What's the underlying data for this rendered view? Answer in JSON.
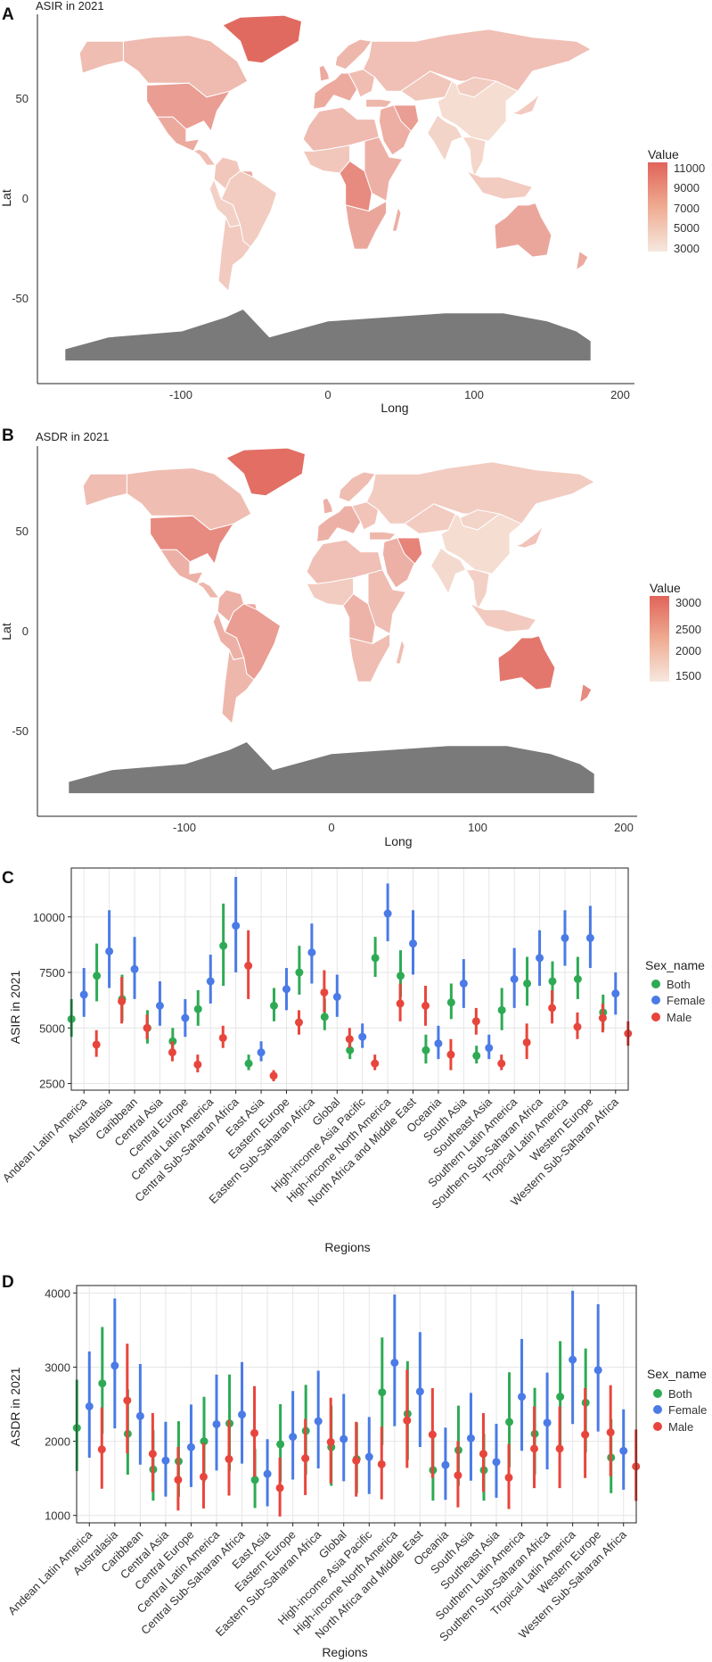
{
  "colors": {
    "both": "#2eaa55",
    "female": "#4a7be6",
    "male": "#e8453c",
    "antarctica": "#7a7a7a",
    "scale_low": "#f6e3d8",
    "scale_high": "#e0645a"
  },
  "chart_data": [
    {
      "panel": "A",
      "type": "choropleth",
      "title": "ASIR in 2021",
      "xlabel": "Long",
      "ylabel": "Lat",
      "xticks": [
        "-100",
        "0",
        "100",
        "200"
      ],
      "yticks": [
        "50",
        "0",
        "-50"
      ],
      "xlim": [
        -185,
        210
      ],
      "ylim": [
        -92,
        90
      ],
      "legend_title": "Value",
      "legend_values": [
        "11000",
        "9000",
        "7000",
        "5000",
        "3000"
      ],
      "range": [
        3000,
        11500
      ]
    },
    {
      "panel": "B",
      "type": "choropleth",
      "title": "ASDR in 2021",
      "xlabel": "Long",
      "ylabel": "Lat",
      "xticks": [
        "-100",
        "0",
        "100",
        "200"
      ],
      "yticks": [
        "50",
        "0",
        "-50"
      ],
      "xlim": [
        -185,
        210
      ],
      "ylim": [
        -92,
        90
      ],
      "legend_title": "Value",
      "legend_values": [
        "3000",
        "2500",
        "2000",
        "1500"
      ],
      "range": [
        1400,
        3100
      ]
    },
    {
      "panel": "C",
      "type": "pointrange",
      "xlabel": "Regions",
      "ylabel": "ASIR in 2021",
      "ylim": [
        2200,
        12200
      ],
      "yticks": [
        "2500",
        "5000",
        "7500",
        "10000"
      ],
      "legend_title": "Sex_name",
      "legend_labels": [
        "Both",
        "Female",
        "Male"
      ],
      "categories": [
        "Andean Latin America",
        "Australasia",
        "Caribbean",
        "Central Asia",
        "Central Europe",
        "Central Latin America",
        "Central Sub-Saharan Africa",
        "East Asia",
        "Eastern Europe",
        "Eastern Sub-Saharan Africa",
        "Global",
        "High-income Asia Pacific",
        "High-income North America",
        "North Africa and Middle East",
        "Oceania",
        "South Asia",
        "Southeast Asia",
        "Southern Latin America",
        "Southern Sub-Saharan Africa",
        "Tropical Latin America",
        "Western Europe",
        "Western Sub-Saharan Africa"
      ],
      "series": [
        {
          "name": "Both",
          "values": [
            5400,
            7350,
            6300,
            5000,
            4400,
            5850,
            8700,
            3400,
            6000,
            7500,
            5500,
            4000,
            8150,
            7350,
            4000,
            6150,
            3750,
            5800,
            7000,
            7100,
            7200,
            5700
          ],
          "lower": [
            4600,
            6200,
            5300,
            4300,
            3800,
            5100,
            6900,
            3100,
            5300,
            6500,
            4900,
            3600,
            7300,
            6400,
            3400,
            5400,
            3400,
            4900,
            6000,
            6200,
            6300,
            4900
          ],
          "upper": [
            6300,
            8800,
            7400,
            5800,
            5000,
            6700,
            10600,
            3800,
            6800,
            8700,
            6300,
            4400,
            9100,
            8500,
            4700,
            7000,
            4200,
            6800,
            8200,
            8000,
            8200,
            6500
          ]
        },
        {
          "name": "Female",
          "values": [
            6500,
            8450,
            7650,
            6000,
            5450,
            7100,
            9600,
            3900,
            6750,
            8400,
            6400,
            4600,
            10150,
            8800,
            4300,
            7000,
            4100,
            7200,
            8150,
            9050,
            9050,
            6550
          ],
          "lower": [
            5500,
            6800,
            6300,
            5100,
            4600,
            6100,
            7500,
            3500,
            5800,
            7000,
            5500,
            4100,
            8900,
            7400,
            3600,
            5900,
            3600,
            5900,
            6900,
            7800,
            7700,
            5600
          ],
          "upper": [
            7700,
            10300,
            9100,
            7100,
            6300,
            8300,
            11800,
            4400,
            7700,
            9700,
            7400,
            5200,
            11500,
            10300,
            5100,
            8100,
            4700,
            8600,
            9400,
            10300,
            10500,
            7500
          ]
        },
        {
          "name": "Male",
          "values": [
            4250,
            6200,
            5000,
            3900,
            3350,
            4550,
            7800,
            2850,
            5250,
            6600,
            4500,
            3400,
            6100,
            6000,
            3800,
            5300,
            3400,
            4350,
            5900,
            5050,
            5450,
            4750
          ],
          "lower": [
            3700,
            5200,
            4500,
            3500,
            3000,
            4100,
            6300,
            2600,
            4700,
            5700,
            4100,
            3100,
            5300,
            5100,
            3100,
            4700,
            3100,
            3600,
            5200,
            4500,
            4800,
            4200
          ],
          "upper": [
            4900,
            7300,
            5600,
            4400,
            3800,
            5100,
            9400,
            3100,
            5800,
            7600,
            5000,
            3800,
            7000,
            6900,
            4500,
            5900,
            3800,
            5200,
            6700,
            5700,
            6100,
            5300
          ]
        }
      ]
    },
    {
      "panel": "D",
      "type": "pointrange",
      "xlabel": "Regions",
      "ylabel": "ASDR in 2021",
      "ylim": [
        900,
        4100
      ],
      "yticks": [
        "1000",
        "2000",
        "3000",
        "4000"
      ],
      "legend_title": "Sex_name",
      "legend_labels": [
        "Both",
        "Female",
        "Male"
      ],
      "categories": [
        "Andean Latin America",
        "Australasia",
        "Caribbean",
        "Central Asia",
        "Central Europe",
        "Central Latin America",
        "Central Sub-Saharan Africa",
        "East Asia",
        "Eastern Europe",
        "Eastern Sub-Saharan Africa",
        "Global",
        "High-income Asia Pacific",
        "High-income North America",
        "North Africa and Middle East",
        "Oceania",
        "South Asia",
        "Southeast Asia",
        "Southern Latin America",
        "Southern Sub-Saharan Africa",
        "Tropical Latin America",
        "Western Europe",
        "Western Sub-Saharan Africa"
      ],
      "series": [
        {
          "name": "Both",
          "values": [
            2180,
            2780,
            2100,
            1620,
            1730,
            2000,
            2240,
            1480,
            1960,
            2140,
            1920,
            1760,
            2660,
            2370,
            1610,
            1880,
            1610,
            2260,
            2100,
            2600,
            2520,
            1780
          ],
          "lower": [
            1600,
            2100,
            1550,
            1200,
            1250,
            1450,
            1600,
            1100,
            1450,
            1550,
            1400,
            1300,
            1950,
            1750,
            1200,
            1400,
            1200,
            1650,
            1550,
            1900,
            1850,
            1300
          ],
          "upper": [
            2830,
            3540,
            2700,
            2150,
            2270,
            2600,
            2900,
            1900,
            2500,
            2760,
            2480,
            2250,
            3400,
            3080,
            2100,
            2480,
            2100,
            2930,
            2720,
            3350,
            3250,
            2300
          ]
        },
        {
          "name": "Female",
          "values": [
            2470,
            3020,
            2340,
            1740,
            1920,
            2230,
            2360,
            1560,
            2060,
            2270,
            2030,
            1790,
            3060,
            2670,
            1680,
            2040,
            1720,
            2600,
            2250,
            3100,
            2960,
            1870
          ]
        },
        {
          "name": "Male",
          "values": [
            1890,
            2550,
            1830,
            1480,
            1520,
            1760,
            2110,
            1370,
            1770,
            1990,
            1740,
            1690,
            2280,
            2090,
            1540,
            1830,
            1510,
            1900,
            1900,
            2090,
            2120,
            1660
          ]
        }
      ]
    }
  ]
}
